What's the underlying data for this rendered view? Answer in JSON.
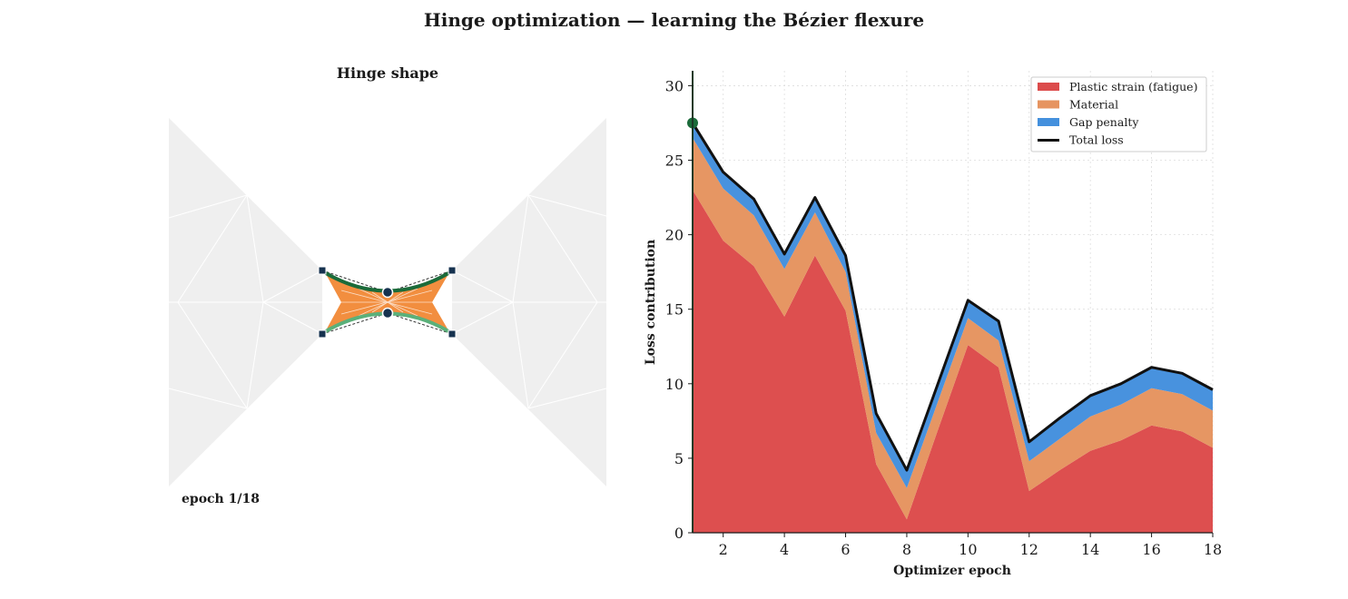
{
  "figure": {
    "title": "Hinge optimization — learning the Bézier flexure"
  },
  "hinge_panel": {
    "title": "Hinge shape",
    "epoch_label": "epoch 1/18",
    "colors": {
      "background_panels": "#efefef",
      "hinge_fill": "#f28e3f",
      "top_curve": "#1b6b3a",
      "bottom_curve": "#5bb07a",
      "control_points": "#16324f"
    }
  },
  "chart_data": {
    "type": "area",
    "stacked": true,
    "title": "",
    "xlabel": "Optimizer epoch",
    "ylabel": "Loss contribution",
    "xlim": [
      1,
      18
    ],
    "ylim": [
      0,
      31
    ],
    "xticks": [
      2,
      4,
      6,
      8,
      10,
      12,
      14,
      16,
      18
    ],
    "yticks": [
      0,
      5,
      10,
      15,
      20,
      25,
      30
    ],
    "grid": true,
    "legend_position": "top-right",
    "x": [
      1,
      2,
      3,
      4,
      5,
      6,
      7,
      8,
      9,
      10,
      11,
      12,
      13,
      14,
      15,
      16,
      17,
      18
    ],
    "series": [
      {
        "name": "Plastic strain (fatigue)",
        "color": "#dc4b4b",
        "values": [
          23.0,
          19.6,
          17.9,
          14.5,
          18.6,
          14.9,
          4.6,
          0.9,
          6.8,
          12.6,
          11.1,
          2.8,
          4.2,
          5.5,
          6.2,
          7.2,
          6.8,
          5.7
        ]
      },
      {
        "name": "Material",
        "color": "#e69460",
        "values": [
          3.5,
          3.5,
          3.4,
          3.2,
          2.9,
          2.6,
          2.1,
          2.1,
          1.9,
          1.8,
          1.8,
          2.0,
          2.1,
          2.3,
          2.4,
          2.5,
          2.5,
          2.5
        ]
      },
      {
        "name": "Gap penalty",
        "color": "#4490dd",
        "values": [
          1.0,
          1.1,
          1.1,
          1.0,
          1.0,
          1.1,
          1.3,
          1.2,
          1.2,
          1.2,
          1.3,
          1.3,
          1.4,
          1.4,
          1.4,
          1.4,
          1.4,
          1.4
        ]
      }
    ],
    "total_line": {
      "name": "Total loss",
      "color": "#111111"
    },
    "current_epoch": 1,
    "current_color": "#1b6b3a"
  }
}
